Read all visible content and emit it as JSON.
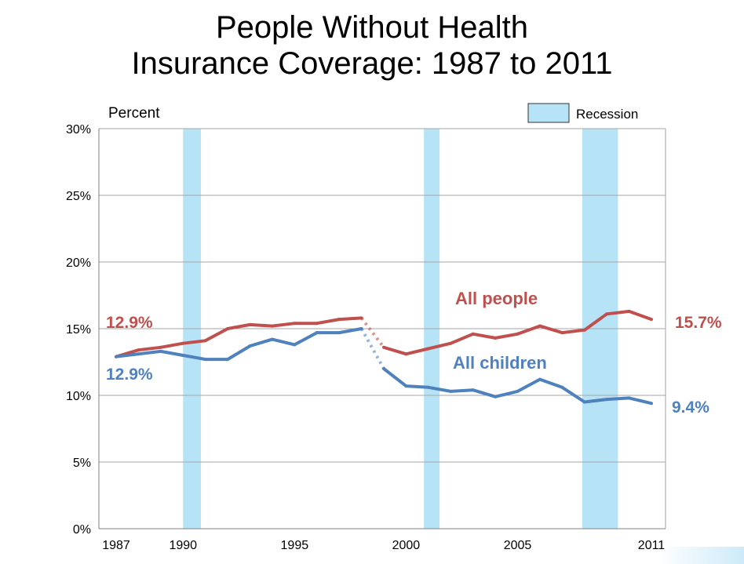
{
  "title_line1": "People Without Health",
  "title_line2": "Insurance Coverage: 1987 to 2011",
  "chart_data": {
    "type": "line",
    "title": "People Without Health Insurance Coverage: 1987 to 2011",
    "ylabel": "Percent",
    "xlabel": "",
    "xlim": [
      1987,
      2011
    ],
    "ylim": [
      0,
      30
    ],
    "x_ticks": [
      1987,
      1990,
      1995,
      2000,
      2005,
      2011
    ],
    "y_ticks": [
      {
        "v": 0,
        "label": "0%"
      },
      {
        "v": 5,
        "label": "5%"
      },
      {
        "v": 10,
        "label": "10%"
      },
      {
        "v": 15,
        "label": "15%"
      },
      {
        "v": 20,
        "label": "20%"
      },
      {
        "v": 25,
        "label": "25%"
      },
      {
        "v": 30,
        "label": "30%"
      }
    ],
    "grid": "horizontal",
    "legend": {
      "label": "Recession",
      "position": "top-right"
    },
    "recessions": [
      [
        1990.0,
        1990.8
      ],
      [
        2000.8,
        2001.5
      ],
      [
        2007.9,
        2009.5
      ]
    ],
    "series": [
      {
        "name": "All people",
        "color": "#c0504d",
        "x": [
          1987,
          1988,
          1989,
          1990,
          1991,
          1992,
          1993,
          1994,
          1995,
          1996,
          1997,
          1998,
          1999,
          2000,
          2001,
          2002,
          2003,
          2004,
          2005,
          2006,
          2007,
          2008,
          2009,
          2010,
          2011
        ],
        "values": [
          12.9,
          13.4,
          13.6,
          13.9,
          14.1,
          15.0,
          15.3,
          15.2,
          15.4,
          15.4,
          15.7,
          15.8,
          13.6,
          13.1,
          13.5,
          13.9,
          14.6,
          14.3,
          14.6,
          15.2,
          14.7,
          14.9,
          16.1,
          16.3,
          15.7
        ],
        "break_after_x": 1998,
        "start_label": "12.9%",
        "end_label": "15.7%"
      },
      {
        "name": "All children",
        "color": "#4f81bd",
        "x": [
          1987,
          1988,
          1989,
          1990,
          1991,
          1992,
          1993,
          1994,
          1995,
          1996,
          1997,
          1998,
          1999,
          2000,
          2001,
          2002,
          2003,
          2004,
          2005,
          2006,
          2007,
          2008,
          2009,
          2010,
          2011
        ],
        "values": [
          12.9,
          13.1,
          13.3,
          13.0,
          12.7,
          12.7,
          13.7,
          14.2,
          13.8,
          14.7,
          14.7,
          15.0,
          12.0,
          10.7,
          10.6,
          10.3,
          10.4,
          9.9,
          10.3,
          11.2,
          10.6,
          9.5,
          9.7,
          9.8,
          9.4
        ],
        "break_after_x": 1998,
        "start_label": "12.9%",
        "end_label": "9.4%"
      }
    ]
  }
}
